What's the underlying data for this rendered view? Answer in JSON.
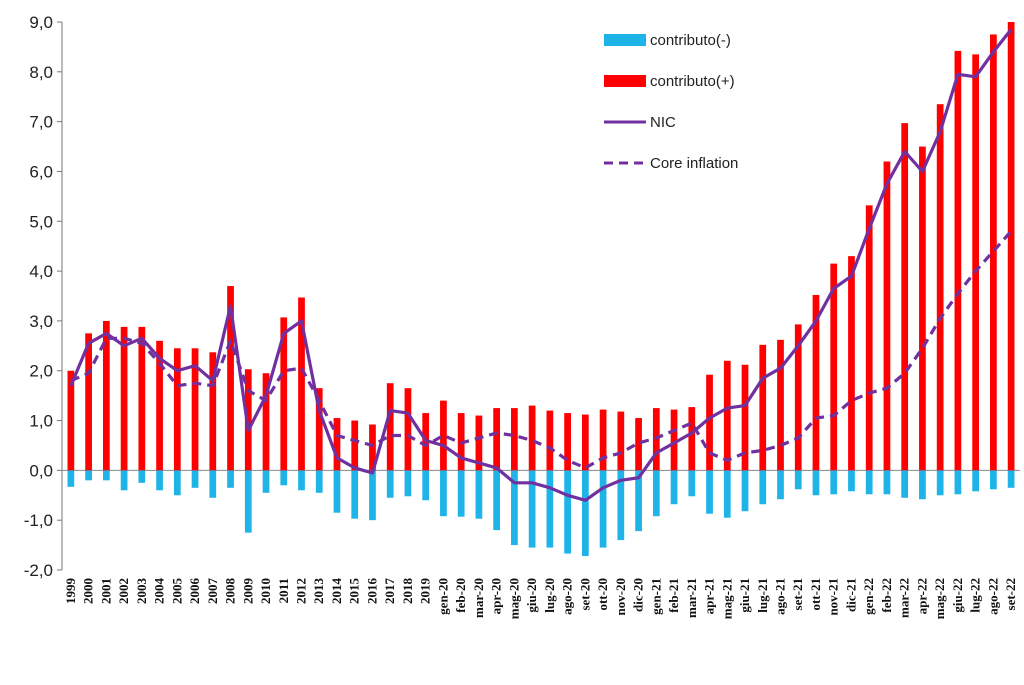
{
  "chart_data": {
    "type": "bar",
    "title": "",
    "xlabel": "",
    "ylabel": "",
    "ylim": [
      -2.0,
      9.0
    ],
    "yticks": [
      -2.0,
      -1.0,
      0.0,
      1.0,
      2.0,
      3.0,
      4.0,
      5.0,
      6.0,
      7.0,
      8.0,
      9.0
    ],
    "ytick_labels": [
      "-2,0",
      "-1,0",
      "0,0",
      "1,0",
      "2,0",
      "3,0",
      "4,0",
      "5,0",
      "6,0",
      "7,0",
      "8,0",
      "9,0"
    ],
    "legend_position": "top-right",
    "colors": {
      "negative": "#1fb4e8",
      "positive": "#ff0000",
      "nic": "#7030a0",
      "core": "#7030a0"
    },
    "categories": [
      "1999",
      "2000",
      "2001",
      "2002",
      "2003",
      "2004",
      "2005",
      "2006",
      "2007",
      "2008",
      "2009",
      "2010",
      "2011",
      "2012",
      "2013",
      "2014",
      "2015",
      "2016",
      "2017",
      "2018",
      "2019",
      "gen-20",
      "feb-20",
      "mar-20",
      "apr-20",
      "mag-20",
      "giu-20",
      "lug-20",
      "ago-20",
      "set-20",
      "ott-20",
      "nov-20",
      "dic-20",
      "gen-21",
      "feb-21",
      "mar-21",
      "apr-21",
      "mag-21",
      "giu-21",
      "lug-21",
      "ago-21",
      "set-21",
      "ott-21",
      "nov-21",
      "dic-21",
      "gen-22",
      "feb-22",
      "mar-22",
      "apr-22",
      "mag-22",
      "giu-22",
      "lug-22",
      "ago-22",
      "set-22"
    ],
    "series": [
      {
        "name": "contributo(-)",
        "type": "bar",
        "values": [
          -0.33,
          -0.2,
          -0.2,
          -0.4,
          -0.25,
          -0.4,
          -0.5,
          -0.35,
          -0.55,
          -0.35,
          -1.25,
          -0.45,
          -0.3,
          -0.4,
          -0.45,
          -0.85,
          -0.97,
          -1.0,
          -0.55,
          -0.52,
          -0.6,
          -0.92,
          -0.93,
          -0.97,
          -1.2,
          -1.5,
          -1.55,
          -1.55,
          -1.67,
          -1.72,
          -1.55,
          -1.4,
          -1.22,
          -0.92,
          -0.68,
          -0.52,
          -0.87,
          -0.95,
          -0.82,
          -0.68,
          -0.58,
          -0.38,
          -0.5,
          -0.48,
          -0.42,
          -0.48,
          -0.48,
          -0.55,
          -0.58,
          -0.5,
          -0.48,
          -0.42,
          -0.38,
          -0.35
        ]
      },
      {
        "name": "contributo(+)",
        "type": "bar",
        "values": [
          2.0,
          2.75,
          3.0,
          2.88,
          2.88,
          2.6,
          2.45,
          2.45,
          2.37,
          3.7,
          2.03,
          1.95,
          3.07,
          3.47,
          1.65,
          1.05,
          1.0,
          0.92,
          1.75,
          1.65,
          1.15,
          1.4,
          1.15,
          1.1,
          1.25,
          1.25,
          1.3,
          1.2,
          1.15,
          1.12,
          1.22,
          1.18,
          1.05,
          1.25,
          1.22,
          1.27,
          1.92,
          2.2,
          2.12,
          2.52,
          2.62,
          2.93,
          3.52,
          4.15,
          4.3,
          5.32,
          6.2,
          6.97,
          6.5,
          7.35,
          8.42,
          8.35,
          8.75,
          9.0
        ]
      },
      {
        "name": "NIC",
        "type": "line",
        "style": "solid",
        "values": [
          1.7,
          2.55,
          2.75,
          2.5,
          2.65,
          2.25,
          2.0,
          2.1,
          1.8,
          3.3,
          0.8,
          1.5,
          2.75,
          3.0,
          1.2,
          0.25,
          0.05,
          -0.05,
          1.2,
          1.15,
          0.6,
          0.5,
          0.25,
          0.15,
          0.05,
          -0.25,
          -0.25,
          -0.35,
          -0.5,
          -0.6,
          -0.35,
          -0.2,
          -0.15,
          0.35,
          0.55,
          0.75,
          1.05,
          1.25,
          1.3,
          1.85,
          2.05,
          2.5,
          3.0,
          3.65,
          3.9,
          4.85,
          5.75,
          6.4,
          6.0,
          6.8,
          7.95,
          7.9,
          8.4,
          8.85
        ]
      },
      {
        "name": "Core inflation",
        "type": "line",
        "style": "dashed",
        "values": [
          1.8,
          1.95,
          2.65,
          2.65,
          2.55,
          2.15,
          1.7,
          1.75,
          1.7,
          2.6,
          1.6,
          1.4,
          2.0,
          2.05,
          1.4,
          0.7,
          0.6,
          0.5,
          0.7,
          0.7,
          0.5,
          0.7,
          0.55,
          0.65,
          0.75,
          0.7,
          0.6,
          0.45,
          0.2,
          0.05,
          0.25,
          0.35,
          0.55,
          0.65,
          0.8,
          0.95,
          0.35,
          0.2,
          0.35,
          0.4,
          0.5,
          0.65,
          1.05,
          1.1,
          1.4,
          1.55,
          1.65,
          1.95,
          2.45,
          3.05,
          3.55,
          4.0,
          4.4,
          4.8
        ]
      }
    ],
    "legend": [
      {
        "label": "contributo(-)",
        "kind": "bar-negative"
      },
      {
        "label": "contributo(+)",
        "kind": "bar-positive"
      },
      {
        "label": "NIC",
        "kind": "line-solid"
      },
      {
        "label": "Core inflation",
        "kind": "line-dashed"
      }
    ]
  }
}
